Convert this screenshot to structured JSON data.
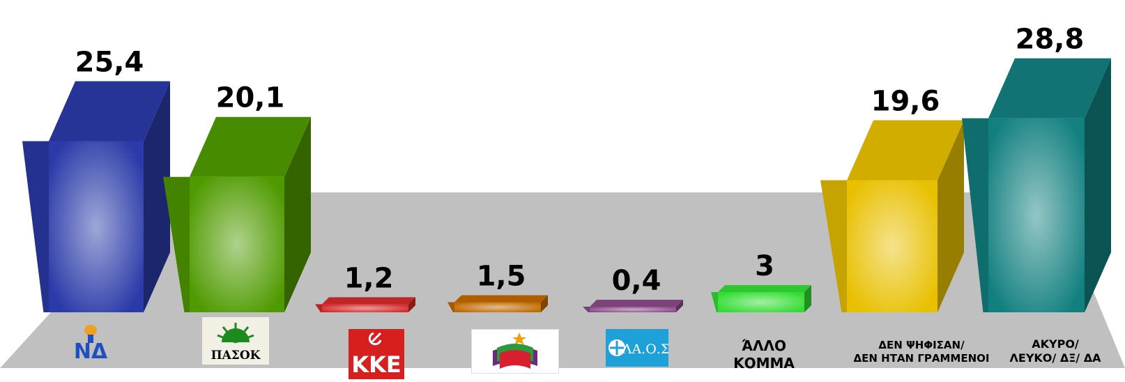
{
  "chart_data": {
    "type": "bar",
    "categories": [
      "ΝΔ",
      "ΠΑΣΟΚ",
      "ΚΚΕ",
      "ΣΥΡΙΖΑ",
      "ΛΑ.Ο.Σ",
      "ΆΛΛΟ ΚΟΜΜΑ",
      "ΔΕΝ ΨΗΦΙΣΑΝ/ ΔΕΝ ΗΤΑΝ ΓΡΑΜΜΕΝΟΙ",
      "ΑΚΥΡΟ/ ΛΕΥΚΟ/ ΔΞ/ ΔΑ"
    ],
    "values": [
      25.4,
      20.1,
      1.2,
      1.5,
      0.4,
      3,
      19.6,
      28.8
    ],
    "value_labels": [
      "25,4",
      "20,1",
      "1,2",
      "1,5",
      "0,4",
      "3",
      "19,6",
      "28,8"
    ],
    "colors": [
      "#2a3aa8",
      "#4f9a00",
      "#d42a2a",
      "#c06a00",
      "#8a4a88",
      "#33dd33",
      "#e8c000",
      "#138080"
    ],
    "ylim": [
      0,
      30
    ],
    "grid": false
  },
  "labels": {
    "logo_nd": "ΝΔ",
    "logo_pasok": "ΠΑΣΟΚ",
    "logo_kke": "ΚΚΕ",
    "logo_laos": "ΛΑ.Ο.Σ",
    "allo_line1": "ΆΛΛΟ",
    "allo_line2": "ΚΟΜΜΑ",
    "den_line1": "ΔΕΝ ΨΗΦΙΣΑΝ/",
    "den_line2": "ΔΕΝ ΗΤΑΝ ΓΡΑΜΜΕΝΟΙ",
    "akyro_line1": "ΑΚΥΡΟ/",
    "akyro_line2": "ΛΕΥΚΟ/ ΔΞ/ ΔΑ"
  }
}
